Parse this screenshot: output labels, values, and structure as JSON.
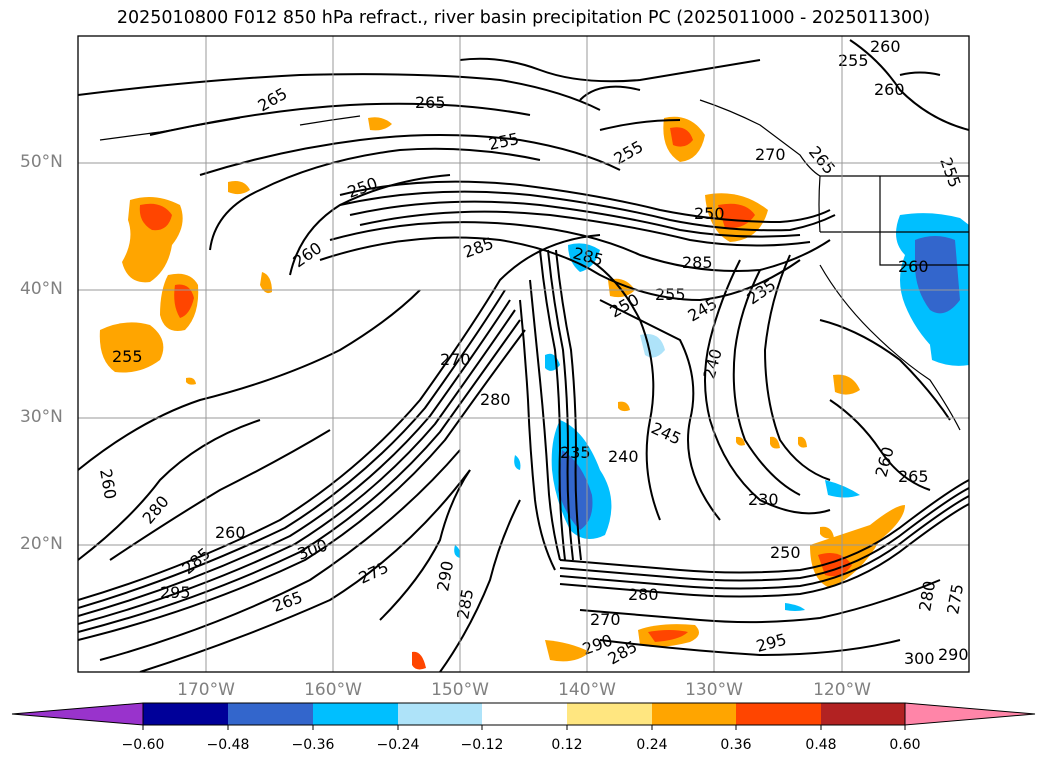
{
  "title": "2025010800 F012 850 hPa refract., river basin precipitation PC (2025011000 - 2025011300)",
  "map": {
    "projection": "cylindrical",
    "lon_range": [
      "180°W",
      "110°W"
    ],
    "lat_range": [
      "10°N",
      "60°N"
    ],
    "gridlines": true,
    "lat_labels": [
      "50°N",
      "40°N",
      "30°N",
      "20°N"
    ],
    "lon_labels": [
      "170°W",
      "160°W",
      "150°W",
      "140°W",
      "130°W",
      "120°W"
    ],
    "contour_variable": "850 hPa refractivity",
    "contour_labels": [
      "265",
      "265",
      "255",
      "250",
      "260",
      "285",
      "260",
      "255",
      "255",
      "265",
      "260",
      "270",
      "250",
      "285",
      "255",
      "250",
      "285",
      "245",
      "235",
      "255",
      "260",
      "270",
      "280",
      "240",
      "245",
      "235",
      "240",
      "230",
      "250",
      "280",
      "285",
      "295",
      "300",
      "265",
      "275",
      "290",
      "285",
      "295",
      "290",
      "285",
      "270",
      "280",
      "300",
      "290",
      "275",
      "280",
      "260",
      "265",
      "260",
      "255",
      "260"
    ]
  },
  "colorbar": {
    "labels": [
      "−0.60",
      "−0.48",
      "−0.36",
      "−0.24",
      "−0.12",
      "0.12",
      "0.24",
      "0.36",
      "0.48",
      "0.60"
    ],
    "colors": [
      "#9933cc",
      "#000099",
      "#3366cc",
      "#00bfff",
      "#aee3f9",
      "#ffffff",
      "#ffe680",
      "#ffa500",
      "#ff4500",
      "#b22222",
      "#ff85a8"
    ]
  }
}
